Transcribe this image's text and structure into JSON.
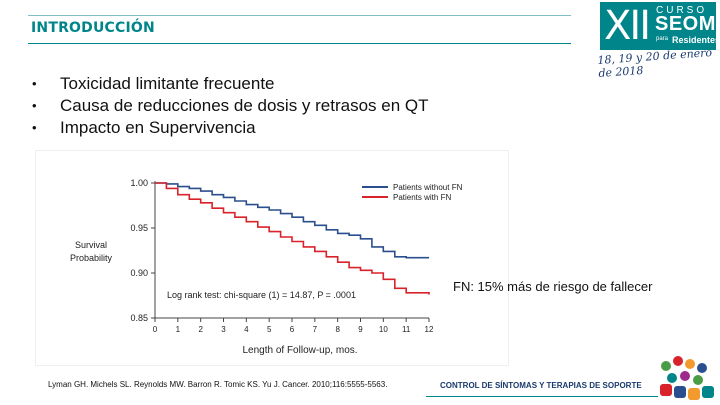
{
  "header": {
    "title": "INTRODUCCIÓN"
  },
  "logo": {
    "roman": "XII",
    "curso": "CURSO",
    "org": "SEOM",
    "para": "para",
    "residentes": "Residentes"
  },
  "event_date": "18, 19 y 20 de enero de 2018",
  "bullets": [
    "Toxicidad limitante frecuente",
    "Causa de reducciones de dosis y retrasos en QT",
    "Impacto en Supervivencia"
  ],
  "bullet_symbol": "•",
  "chart_data": {
    "type": "line",
    "ylabel": [
      "Survival",
      "Probability"
    ],
    "xlabel": "Length of Follow-up, mos.",
    "x_ticks": [
      "0",
      "1",
      "2",
      "3",
      "4",
      "5",
      "6",
      "7",
      "8",
      "9",
      "10",
      "11",
      "12"
    ],
    "y_ticks": [
      "1.00",
      "0.95",
      "0.90",
      "0.85"
    ],
    "xlim": [
      0,
      12
    ],
    "ylim": [
      0.85,
      1.0
    ],
    "annotation": "Log rank test: chi-square (1) = 14.87, P = .0001",
    "series": [
      {
        "name": "Patients without FN",
        "color": "#2b4f8e",
        "points": [
          [
            0,
            1.0
          ],
          [
            0.5,
            0.999
          ],
          [
            1,
            0.996
          ],
          [
            1.5,
            0.994
          ],
          [
            2,
            0.991
          ],
          [
            2.5,
            0.987
          ],
          [
            3,
            0.984
          ],
          [
            3.5,
            0.98
          ],
          [
            4,
            0.976
          ],
          [
            4.5,
            0.973
          ],
          [
            5,
            0.97
          ],
          [
            5.5,
            0.966
          ],
          [
            6,
            0.962
          ],
          [
            6.5,
            0.957
          ],
          [
            7,
            0.953
          ],
          [
            7.5,
            0.948
          ],
          [
            8,
            0.944
          ],
          [
            8.5,
            0.942
          ],
          [
            9,
            0.938
          ],
          [
            9.5,
            0.929
          ],
          [
            10,
            0.924
          ],
          [
            10.5,
            0.918
          ],
          [
            11,
            0.917
          ],
          [
            12,
            0.917
          ]
        ]
      },
      {
        "name": "Patients with FN",
        "color": "#d8232a",
        "points": [
          [
            0,
            1.0
          ],
          [
            0.5,
            0.994
          ],
          [
            1,
            0.987
          ],
          [
            1.5,
            0.982
          ],
          [
            2,
            0.978
          ],
          [
            2.5,
            0.972
          ],
          [
            3,
            0.967
          ],
          [
            3.5,
            0.962
          ],
          [
            4,
            0.957
          ],
          [
            4.5,
            0.951
          ],
          [
            5,
            0.946
          ],
          [
            5.5,
            0.94
          ],
          [
            6,
            0.935
          ],
          [
            6.5,
            0.929
          ],
          [
            7,
            0.924
          ],
          [
            7.5,
            0.918
          ],
          [
            8,
            0.912
          ],
          [
            8.5,
            0.906
          ],
          [
            9,
            0.903
          ],
          [
            9.5,
            0.9
          ],
          [
            10,
            0.893
          ],
          [
            10.5,
            0.883
          ],
          [
            11,
            0.878
          ],
          [
            12,
            0.876
          ]
        ]
      }
    ]
  },
  "fn_note": "FN: 15% más de riesgo de fallecer",
  "citation": "Lyman GH. Michels SL. Reynolds MW. Barron R. Tomic KS. Yu J. Cancer. 2010;116:5555-5563.",
  "footer": {
    "text": "CONTROL DE SÍNTOMAS Y TERAPIAS DE SOPORTE"
  }
}
